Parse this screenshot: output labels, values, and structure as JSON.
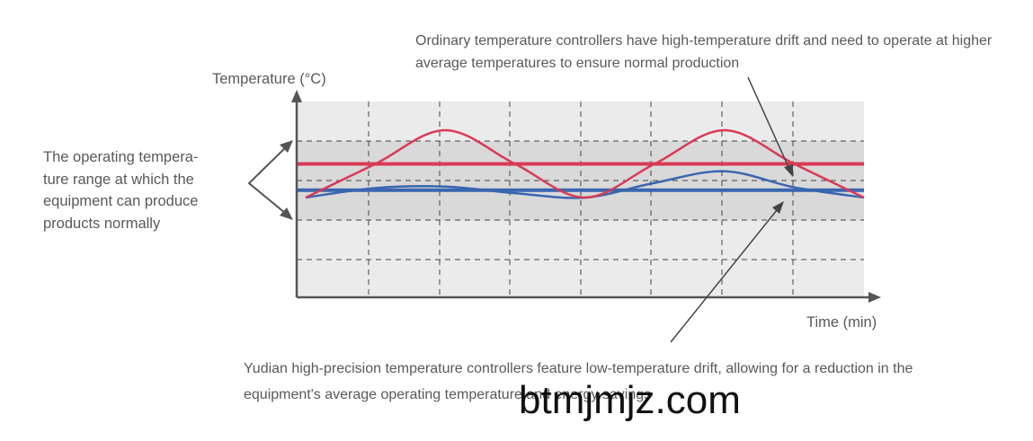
{
  "annotations": {
    "top": "Ordinary temperature controllers have high-temperature drift and need to operate at higher average temperatures to ensure normal production",
    "left": "The operating temperature range at which the equipment can produce products normally",
    "left_lines": [
      "The operating tempera-",
      "ture range at which the",
      "equipment can produce",
      "products normally"
    ],
    "bottom": "Yudian high-precision temperature controllers feature low-temperature drift, allowing for a reduction in the equipment's average operating temperature and energy savings"
  },
  "watermark": "btmjmjz.com",
  "colors": {
    "ordinary": "#d93a55",
    "yudian": "#3a66b0",
    "background": "#ebebeb",
    "normal_band": "#d9d9d9",
    "axis": "#555555"
  },
  "chart_data": {
    "type": "line",
    "xlabel": "Time (min)",
    "ylabel": "Temperature (°C)",
    "grid": true,
    "x_ticks": [],
    "y_ticks": [],
    "normal_operating_range": "shaded band between two horizontal gridlines",
    "series": [
      {
        "key": "ordinary_curve",
        "color": "#d93a55",
        "x": [
          0,
          2,
          4,
          6,
          8,
          10,
          12,
          14,
          16
        ],
        "y": [
          0.8,
          3.1,
          5.4,
          3.1,
          0.8,
          3.1,
          5.4,
          3.1,
          0.8
        ]
      },
      {
        "key": "ordinary_average",
        "color": "#d93a55",
        "x": [
          0,
          16
        ],
        "y": [
          3.1,
          3.1
        ]
      },
      {
        "key": "yudian_curve",
        "color": "#3a66b0",
        "x": [
          0,
          2,
          4,
          6,
          8,
          10,
          12,
          14,
          16
        ],
        "y": [
          0.8,
          1.45,
          1.55,
          1.1,
          0.8,
          1.8,
          2.6,
          1.5,
          0.8
        ]
      },
      {
        "key": "yudian_average",
        "color": "#3a66b0",
        "x": [
          0,
          16
        ],
        "y": [
          1.3,
          1.3
        ]
      }
    ]
  }
}
